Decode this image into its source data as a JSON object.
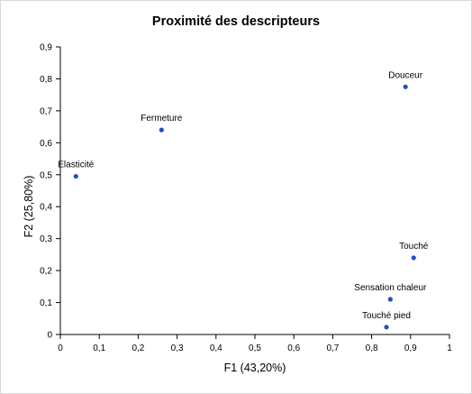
{
  "chart_data": {
    "type": "scatter",
    "title": "Proximité des descripteurs",
    "xlabel": "F1 (43,20%)",
    "ylabel": "F2 (25,80%)",
    "xlim": [
      0,
      1
    ],
    "ylim": [
      0,
      0.9
    ],
    "x_ticks": [
      "0",
      "0,1",
      "0,2",
      "0,3",
      "0,4",
      "0,5",
      "0,6",
      "0,7",
      "0,8",
      "0,9",
      "1"
    ],
    "y_ticks": [
      "0",
      "0,1",
      "0,2",
      "0,3",
      "0,4",
      "0,5",
      "0,6",
      "0,7",
      "0,8",
      "0,9"
    ],
    "grid": false,
    "marker_color": "#1f4fc6",
    "points": [
      {
        "label": "Douceur",
        "x": 0.887,
        "y": 0.775
      },
      {
        "label": "Fermeture",
        "x": 0.26,
        "y": 0.64
      },
      {
        "label": "Elasticité",
        "x": 0.04,
        "y": 0.495
      },
      {
        "label": "Touché",
        "x": 0.908,
        "y": 0.24
      },
      {
        "label": "Sensation chaleur",
        "x": 0.848,
        "y": 0.11
      },
      {
        "label": "Touché pied",
        "x": 0.838,
        "y": 0.023
      }
    ]
  }
}
